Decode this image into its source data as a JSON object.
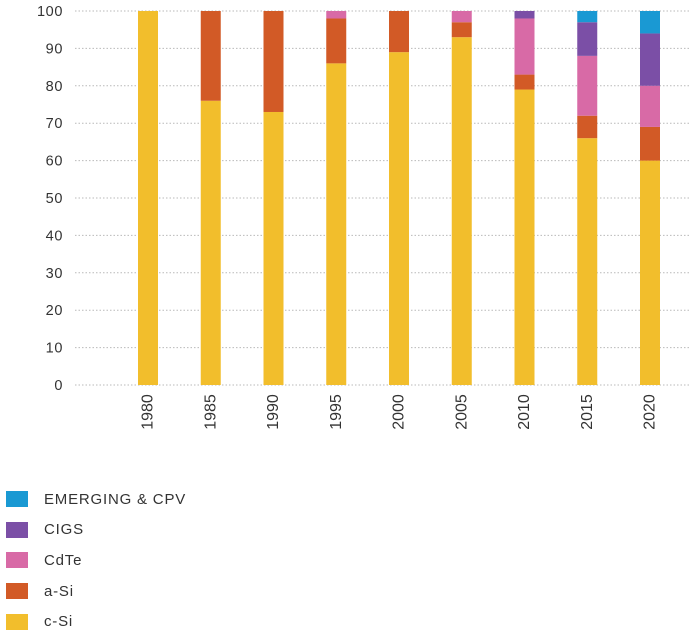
{
  "chart_data": {
    "type": "bar",
    "stacked": true,
    "title": "",
    "xlabel": "",
    "ylabel": "",
    "ylim": [
      0,
      100
    ],
    "yticks": [
      0,
      10,
      20,
      30,
      40,
      50,
      60,
      70,
      80,
      90,
      100
    ],
    "grid": "horizontal dotted",
    "categories": [
      "1980",
      "1985",
      "1990",
      "1995",
      "2000",
      "2005",
      "2010",
      "2015",
      "2020"
    ],
    "series": [
      {
        "name": "c-Si",
        "color": "#F2BE2C",
        "values": [
          100,
          76,
          73,
          86,
          89,
          93,
          79,
          66,
          60
        ]
      },
      {
        "name": "a-Si",
        "color": "#D25A26",
        "values": [
          0,
          24,
          27,
          12,
          11,
          4,
          4,
          6,
          9
        ]
      },
      {
        "name": "CdTe",
        "color": "#D86AA6",
        "values": [
          0,
          0,
          0,
          2,
          0,
          3,
          15,
          16,
          11
        ]
      },
      {
        "name": "CIGS",
        "color": "#7B4FA6",
        "values": [
          0,
          0,
          0,
          0,
          0,
          0,
          2,
          9,
          14
        ]
      },
      {
        "name": "EMERGING & CPV",
        "color": "#1A99D3",
        "values": [
          0,
          0,
          0,
          0,
          0,
          0,
          0,
          3,
          6
        ]
      }
    ],
    "legend_position": "bottom-left",
    "legend_order": [
      "EMERGING & CPV",
      "CIGS",
      "CdTe",
      "a-Si",
      "c-Si"
    ]
  }
}
